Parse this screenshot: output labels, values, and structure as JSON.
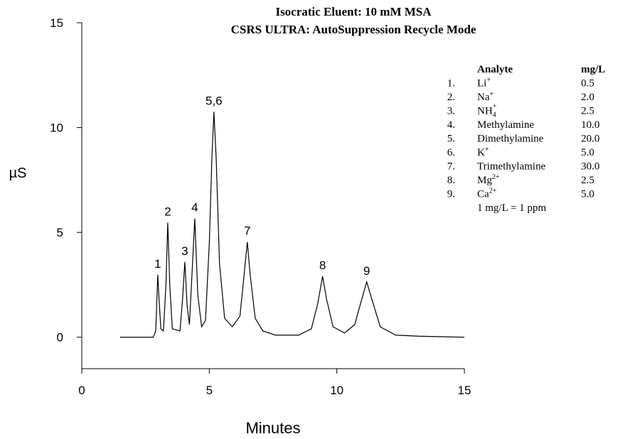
{
  "chart_data": {
    "type": "line",
    "title": "Isocratic Eluent: 10 mM MSA",
    "subtitle": "CSRS ULTRA: AutoSuppression Recycle Mode",
    "x_label": "Minutes",
    "y_label": "µS",
    "color": "#000000",
    "x": [
      1.5,
      2.8,
      2.9,
      2.95,
      2.98,
      3.02,
      3.1,
      3.2,
      3.3,
      3.37,
      3.45,
      3.55,
      3.85,
      3.95,
      4.04,
      4.13,
      4.22,
      4.3,
      4.43,
      4.55,
      4.7,
      4.85,
      5.0,
      5.1,
      5.18,
      5.27,
      5.4,
      5.6,
      5.9,
      6.2,
      6.35,
      6.49,
      6.6,
      6.8,
      7.1,
      7.6,
      8.5,
      9.0,
      9.25,
      9.44,
      9.6,
      9.85,
      10.3,
      10.7,
      10.95,
      11.17,
      11.35,
      11.7,
      12.3,
      13.2,
      15
    ],
    "values": [
      0,
      0,
      0.3,
      2.0,
      2.98,
      2.0,
      0.4,
      0.3,
      2.5,
      5.46,
      2.5,
      0.4,
      0.3,
      1.8,
      3.59,
      1.5,
      0.6,
      2.5,
      5.66,
      2.0,
      0.5,
      0.8,
      4.5,
      8.5,
      10.75,
      8.5,
      3.5,
      0.9,
      0.5,
      1.0,
      2.8,
      4.54,
      3.0,
      0.9,
      0.3,
      0.1,
      0.1,
      0.4,
      1.6,
      2.91,
      1.8,
      0.5,
      0.2,
      0.6,
      1.7,
      2.64,
      1.9,
      0.5,
      0.1,
      0.05,
      0
    ],
    "peak_labels": [
      "1",
      "2",
      "3",
      "4",
      "5,6",
      "7",
      "8",
      "9"
    ],
    "xlim": [
      0,
      15
    ],
    "xticks": [
      0,
      5,
      10,
      15
    ],
    "ylim": [
      -1.5,
      15
    ],
    "yticks": [
      0,
      5,
      10,
      15
    ],
    "legend": {
      "headers": [
        "Analyte",
        "mg/L"
      ],
      "rows": [
        {
          "num": "1.",
          "name": "Li",
          "sup": "+",
          "amount": "0.5"
        },
        {
          "num": "2.",
          "name": "Na",
          "sup": "+",
          "amount": "2.0"
        },
        {
          "num": "3.",
          "name": "NH",
          "sub": "4",
          "sup": "+",
          "amount": "2.5"
        },
        {
          "num": "4.",
          "name": "Methylamine",
          "amount": "10.0"
        },
        {
          "num": "5.",
          "name": "Dimethylamine",
          "amount": "20.0"
        },
        {
          "num": "6.",
          "name": "K",
          "sup": "+",
          "amount": "5.0"
        },
        {
          "num": "7.",
          "name": "Trimethylamine",
          "amount": "30.0"
        },
        {
          "num": "8.",
          "name": "Mg",
          "sup": "2+",
          "amount": "2.5"
        },
        {
          "num": "9.",
          "name": "Ca",
          "sup": "2+",
          "amount": "5.0"
        }
      ],
      "note": "1 mg/L = 1 ppm"
    }
  }
}
